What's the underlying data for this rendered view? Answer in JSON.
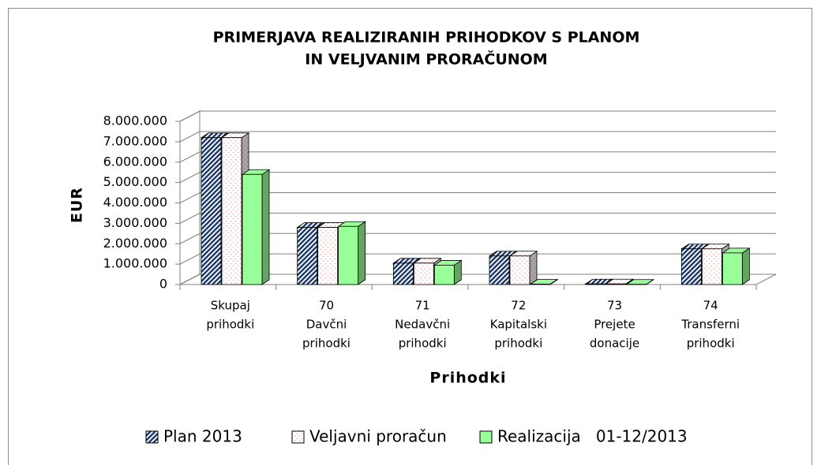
{
  "chart_data": {
    "type": "bar3d",
    "title": [
      "PRIMERJAVA REALIZIRANIH PRIHODKOV S PLANOM",
      "IN VELJVANIM PRORAČUNOM"
    ],
    "y_label": "EUR",
    "x_label": "Prihodki",
    "categories": [
      [
        "Skupaj",
        "prihodki"
      ],
      [
        "70",
        "Davčni",
        "prihodki"
      ],
      [
        "71",
        "Nedavčni",
        "prihodki"
      ],
      [
        "72",
        "Kapitalski",
        "prihodki"
      ],
      [
        "73",
        "Prejete",
        "donacije"
      ],
      [
        "74",
        "Transferni",
        "prihodki"
      ]
    ],
    "series": [
      {
        "name": "Plan 2013",
        "color": "#1f3864",
        "values": [
          7200000,
          2800000,
          1050000,
          1400000,
          30000,
          1750000
        ]
      },
      {
        "name": "Veljavni proračun",
        "color": "#f2a7a7",
        "values": [
          7200000,
          2800000,
          1050000,
          1400000,
          30000,
          1750000
        ]
      },
      {
        "name": "Realizacija   01-12/2013",
        "color": "#99ff99",
        "values": [
          5400000,
          2850000,
          950000,
          20000,
          10000,
          1550000
        ]
      }
    ],
    "ylim": [
      0,
      8000000
    ],
    "yticks": [
      0,
      {
        "value": 1000000,
        "label": "1.000.000"
      },
      {
        "value": 2000000,
        "label": "2.000.000"
      },
      {
        "value": 3000000,
        "label": "3.000.000"
      },
      {
        "value": 4000000,
        "label": "4.000.000"
      },
      {
        "value": 5000000,
        "label": "5.000.000"
      },
      {
        "value": 6000000,
        "label": "6.000.000"
      },
      {
        "value": 7000000,
        "label": "7.000.000"
      },
      {
        "value": 8000000,
        "label": "8.000.000"
      }
    ],
    "grid": true,
    "legend": "bottom"
  }
}
